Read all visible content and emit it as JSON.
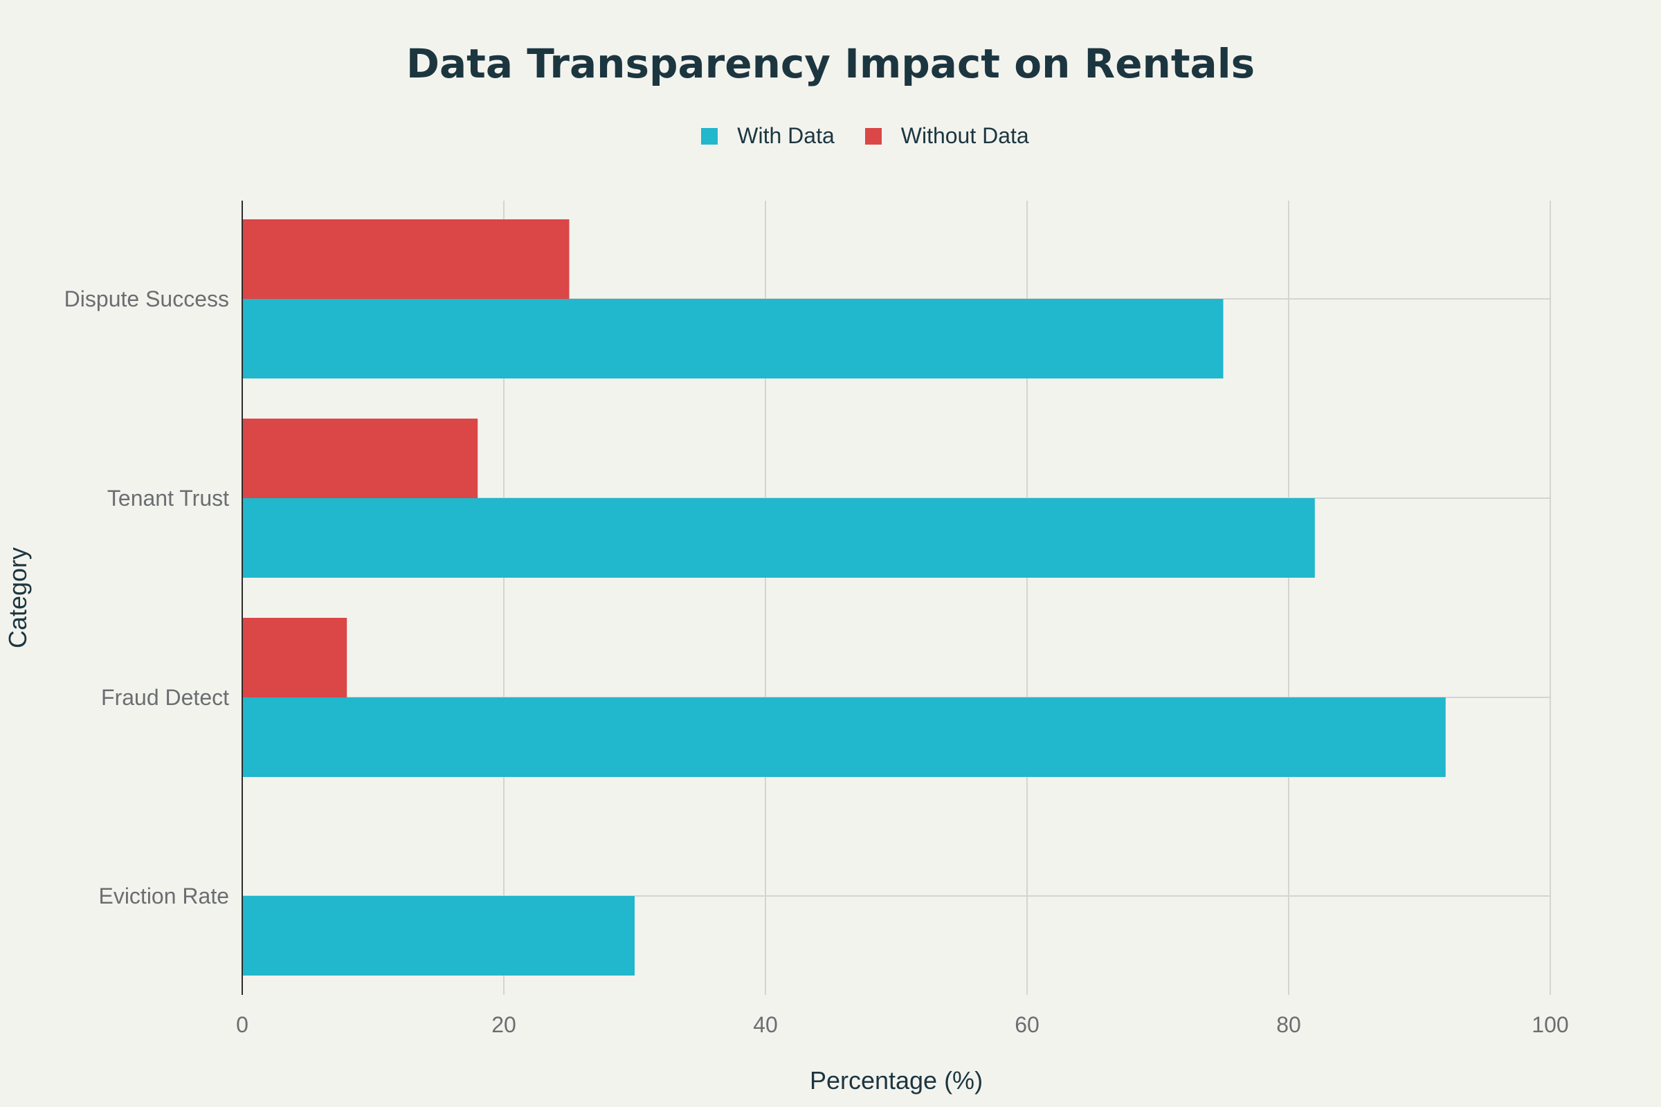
{
  "chart_data": {
    "type": "bar",
    "orientation": "horizontal",
    "title": "Data Transparency Impact on Rentals",
    "xlabel": "Percentage (%)",
    "ylabel": "Category",
    "xlim": [
      0,
      100
    ],
    "xticks": [
      0,
      20,
      40,
      60,
      80,
      100
    ],
    "grid": true,
    "legend_position": "top-center",
    "categories": [
      "Dispute Success",
      "Tenant Trust",
      "Fraud Detect",
      "Eviction Rate"
    ],
    "series": [
      {
        "name": "With Data",
        "color": "#21b7cc",
        "values": [
          75,
          82,
          92,
          30
        ]
      },
      {
        "name": "Without Data",
        "color": "#db4647",
        "values": [
          25,
          18,
          8,
          0
        ]
      }
    ]
  }
}
